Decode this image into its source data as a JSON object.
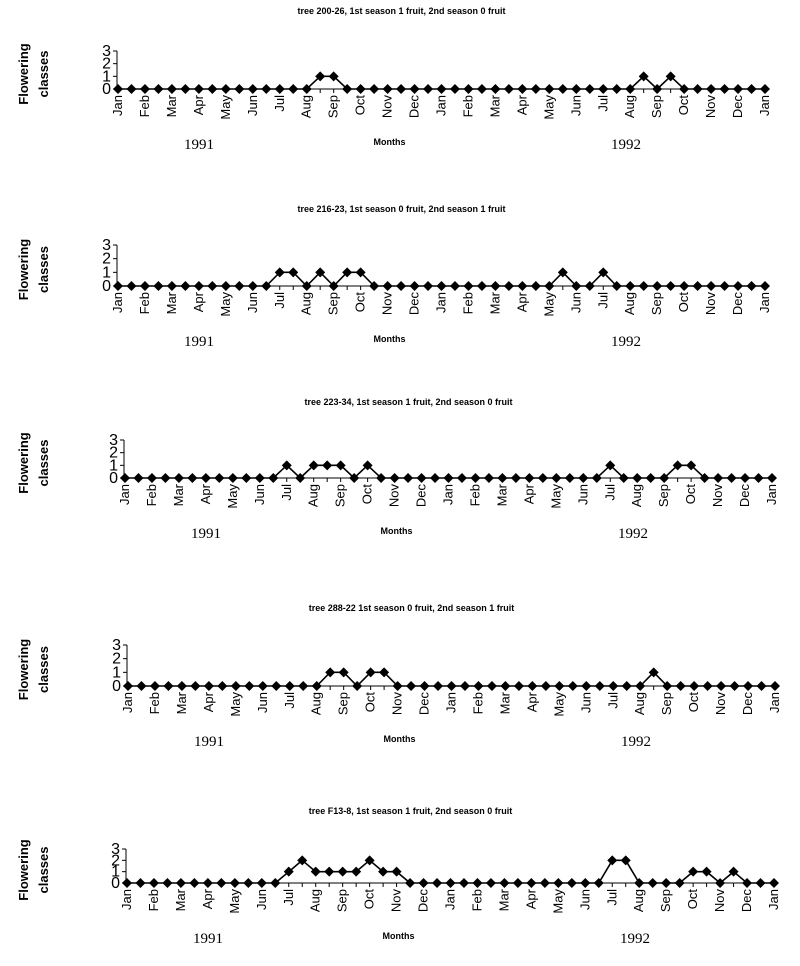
{
  "chart_data": [
    {
      "type": "line",
      "title": "tree 200-26, 1st season 1 fruit, 2nd season 0 fruit",
      "ylabel": [
        "Flowering",
        "classes"
      ],
      "xlabel": "Months",
      "ylim": [
        0,
        3
      ],
      "yticks": [
        0,
        1,
        2,
        3
      ],
      "month_labels": [
        "Jan",
        "Feb",
        "Mar",
        "Apr",
        "May",
        "Jun",
        "Jul",
        "Aug",
        "Sep",
        "Oct",
        "Nov",
        "Dec",
        "Jan",
        "Feb",
        "Mar",
        "Apr",
        "May",
        "Jun",
        "Jul",
        "Aug",
        "Sep",
        "Oct",
        "Nov",
        "Dec",
        "Jan"
      ],
      "year_labels": [
        "1991",
        "1992"
      ],
      "values": [
        0,
        0,
        0,
        0,
        0,
        0,
        0,
        0,
        0,
        0,
        0,
        0,
        0,
        0,
        0,
        1,
        1,
        0,
        0,
        0,
        0,
        0,
        0,
        0,
        0,
        0,
        0,
        0,
        0,
        0,
        0,
        0,
        0,
        0,
        0,
        0,
        0,
        0,
        0,
        1,
        0,
        1,
        0,
        0,
        0,
        0,
        0,
        0,
        0
      ]
    },
    {
      "type": "line",
      "title": "tree 216-23, 1st season 0 fruit, 2nd season 1 fruit",
      "ylabel": [
        "Flowering",
        "classes"
      ],
      "xlabel": "Months",
      "ylim": [
        0,
        3
      ],
      "yticks": [
        0,
        1,
        2,
        3
      ],
      "month_labels": [
        "Jan",
        "Feb",
        "Mar",
        "Apr",
        "May",
        "Jun",
        "Jul",
        "Aug",
        "Sep",
        "Oct",
        "Nov",
        "Dec",
        "Jan",
        "Feb",
        "Mar",
        "Apr",
        "May",
        "Jun",
        "Jul",
        "Aug",
        "Sep",
        "Oct",
        "Nov",
        "Dec",
        "Jan"
      ],
      "year_labels": [
        "1991",
        "1992"
      ],
      "values": [
        0,
        0,
        0,
        0,
        0,
        0,
        0,
        0,
        0,
        0,
        0,
        0,
        1,
        1,
        0,
        1,
        0,
        1,
        1,
        0,
        0,
        0,
        0,
        0,
        0,
        0,
        0,
        0,
        0,
        0,
        0,
        0,
        0,
        1,
        0,
        0,
        1,
        0,
        0,
        0,
        0,
        0,
        0,
        0,
        0,
        0,
        0,
        0,
        0
      ]
    },
    {
      "type": "line",
      "title": "tree 223-34, 1st season 1 fruit, 2nd season 0 fruit",
      "ylabel": [
        "Flowering",
        "classes"
      ],
      "xlabel": "Months",
      "ylim": [
        0,
        3
      ],
      "yticks": [
        0,
        1,
        2,
        3
      ],
      "month_labels": [
        "Jan",
        "Feb",
        "Mar",
        "Apr",
        "May",
        "Jun",
        "Jul",
        "Aug",
        "Sep",
        "Oct",
        "Nov",
        "Dec",
        "Jan",
        "Feb",
        "Mar",
        "Apr",
        "May",
        "Jun",
        "Jul",
        "Aug",
        "Sep",
        "Oct",
        "Nov",
        "Dec",
        "Jan"
      ],
      "year_labels": [
        "1991",
        "1992"
      ],
      "values": [
        0,
        0,
        0,
        0,
        0,
        0,
        0,
        0,
        0,
        0,
        0,
        0,
        1,
        0,
        1,
        1,
        1,
        0,
        1,
        0,
        0,
        0,
        0,
        0,
        0,
        0,
        0,
        0,
        0,
        0,
        0,
        0,
        0,
        0,
        0,
        0,
        1,
        0,
        0,
        0,
        0,
        1,
        1,
        0,
        0,
        0,
        0,
        0,
        0
      ]
    },
    {
      "type": "line",
      "title": "tree 288-22 1st season 0 fruit, 2nd season 1 fruit",
      "ylabel": [
        "Flowering",
        "classes"
      ],
      "xlabel": "Months",
      "ylim": [
        0,
        3
      ],
      "yticks": [
        0,
        1,
        2,
        3
      ],
      "month_labels": [
        "Jan",
        "Feb",
        "Mar",
        "Apr",
        "May",
        "Jun",
        "Jul",
        "Aug",
        "Sep",
        "Oct",
        "Nov",
        "Dec",
        "Jan",
        "Feb",
        "Mar",
        "Apr",
        "May",
        "Jun",
        "Jul",
        "Aug",
        "Sep",
        "Oct",
        "Nov",
        "Dec",
        "Jan"
      ],
      "year_labels": [
        "1991",
        "1992"
      ],
      "values": [
        0,
        0,
        0,
        0,
        0,
        0,
        0,
        0,
        0,
        0,
        0,
        0,
        0,
        0,
        0,
        1,
        1,
        0,
        1,
        1,
        0,
        0,
        0,
        0,
        0,
        0,
        0,
        0,
        0,
        0,
        0,
        0,
        0,
        0,
        0,
        0,
        0,
        0,
        0,
        1,
        0,
        0,
        0,
        0,
        0,
        0,
        0,
        0,
        0
      ]
    },
    {
      "type": "line",
      "title": "tree F13-8, 1st season 1 fruit, 2nd season 0 fruit",
      "ylabel": [
        "Flowering",
        "classes"
      ],
      "xlabel": "Months",
      "ylim": [
        0,
        3
      ],
      "yticks": [
        0,
        1,
        2,
        3
      ],
      "month_labels": [
        "Jan",
        "Feb",
        "Mar",
        "Apr",
        "May",
        "Jun",
        "Jul",
        "Aug",
        "Sep",
        "Oct",
        "Nov",
        "Dec",
        "Jan",
        "Feb",
        "Mar",
        "Apr",
        "May",
        "Jun",
        "Jul",
        "Aug",
        "Sep",
        "Oct",
        "Nov",
        "Dec",
        "Jan"
      ],
      "year_labels": [
        "1991",
        "1992"
      ],
      "values": [
        0,
        0,
        0,
        0,
        0,
        0,
        0,
        0,
        0,
        0,
        0,
        0,
        1,
        2,
        1,
        1,
        1,
        1,
        2,
        1,
        1,
        0,
        0,
        0,
        0,
        0,
        0,
        0,
        0,
        0,
        0,
        0,
        0,
        0,
        0,
        0,
        2,
        2,
        0,
        0,
        0,
        0,
        1,
        1,
        0,
        1,
        0,
        0,
        0
      ]
    }
  ]
}
